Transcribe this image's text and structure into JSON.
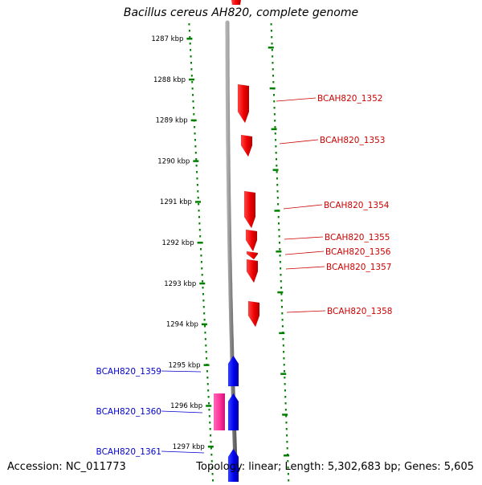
{
  "header": {
    "title": "Bacillus cereus AH820, complete genome"
  },
  "footer": {
    "accession": "Accession: NC_011773",
    "summary": "Topology: linear; Length: 5,302,683 bp; Genes: 5,605"
  },
  "colors": {
    "forward_gene": "#ff0000",
    "reverse_gene": "#0000ff",
    "pink_gene": "#ff3399",
    "ruler": "#008000",
    "backbone": "#808080",
    "forward_label": "#cc0000",
    "reverse_label": "#0000cc"
  },
  "ruler": {
    "ticks": [
      {
        "label": "1287 kbp",
        "kbp": 1287
      },
      {
        "label": "1288 kbp",
        "kbp": 1288
      },
      {
        "label": "1289 kbp",
        "kbp": 1289
      },
      {
        "label": "1290 kbp",
        "kbp": 1290
      },
      {
        "label": "1291 kbp",
        "kbp": 1291
      },
      {
        "label": "1292 kbp",
        "kbp": 1292
      },
      {
        "label": "1293 kbp",
        "kbp": 1293
      },
      {
        "label": "1294 kbp",
        "kbp": 1294
      },
      {
        "label": "1295 kbp",
        "kbp": 1295
      },
      {
        "label": "1296 kbp",
        "kbp": 1296
      },
      {
        "label": "1297 kbp",
        "kbp": 1297
      }
    ]
  },
  "genes": [
    {
      "name": "BCAH820_1352",
      "strand": "forward",
      "labeled": true
    },
    {
      "name": "BCAH820_1353",
      "strand": "forward",
      "labeled": true
    },
    {
      "name": "BCAH820_1354",
      "strand": "forward",
      "labeled": true
    },
    {
      "name": "BCAH820_1355",
      "strand": "forward",
      "labeled": true
    },
    {
      "name": "BCAH820_1356",
      "strand": "forward",
      "labeled": true
    },
    {
      "name": "BCAH820_1357",
      "strand": "forward",
      "labeled": true
    },
    {
      "name": "BCAH820_1358",
      "strand": "forward",
      "labeled": true
    },
    {
      "name": "BCAH820_1359",
      "strand": "reverse",
      "labeled": true
    },
    {
      "name": "BCAH820_1360",
      "strand": "reverse",
      "labeled": true
    },
    {
      "name": "BCAH820_1361",
      "strand": "reverse",
      "labeled": true
    }
  ]
}
